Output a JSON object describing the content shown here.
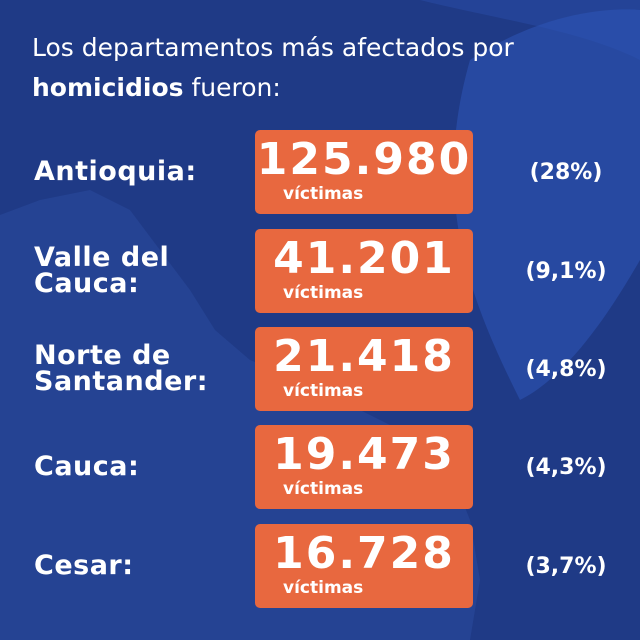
{
  "title": {
    "line1": "Los departamentos más afectados por",
    "bold": "homicidios",
    "rest": " fueron:"
  },
  "colors": {
    "background": "#1f3a86",
    "map_shape": "#2a4a9e",
    "leaf_shape": "#2d56b8",
    "box": "#e8683f",
    "text": "#ffffff"
  },
  "rows": [
    {
      "department": "Antioquia:",
      "value": "125.980",
      "unit": "víctimas",
      "percent": "(28%)"
    },
    {
      "department": "Valle del\nCauca:",
      "value": "41.201",
      "unit": "víctimas",
      "percent": "(9,1%)"
    },
    {
      "department": "Norte de\nSantander:",
      "value": "21.418",
      "unit": "víctimas",
      "percent": "(4,8%)"
    },
    {
      "department": "Cauca:",
      "value": "19.473",
      "unit": "víctimas",
      "percent": "(4,3%)"
    },
    {
      "department": "Cesar:",
      "value": "16.728",
      "unit": "víctimas",
      "percent": "(3,7%)"
    }
  ]
}
